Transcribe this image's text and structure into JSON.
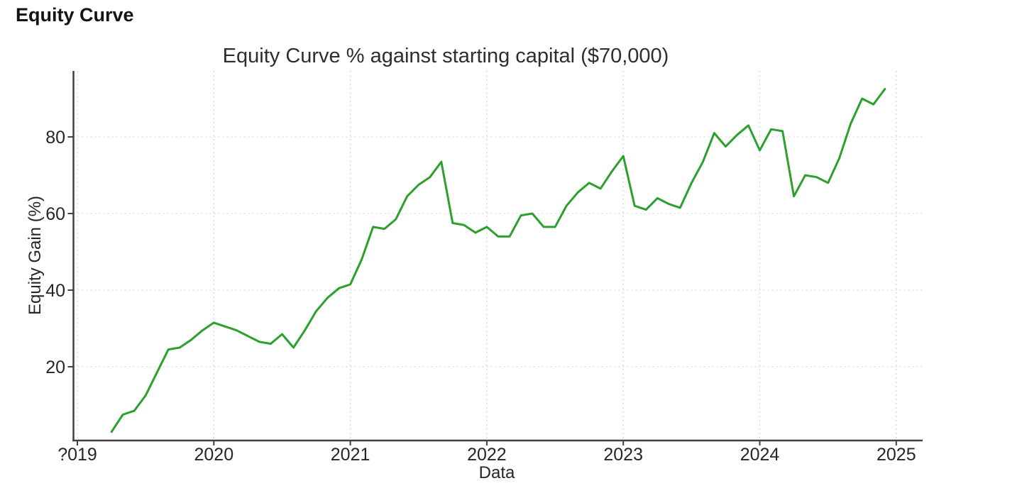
{
  "page": {
    "heading": "Equity Curve"
  },
  "chart_data": {
    "type": "line",
    "title": "Equity Curve % against starting capital ($70,000)",
    "xlabel": "Data",
    "ylabel": "Equity Gain (%)",
    "grid": true,
    "legend": "none",
    "line_color": "#2ca02c",
    "xlim": [
      2018.97,
      2025.2
    ],
    "ylim": [
      0,
      97
    ],
    "x_ticks": [
      2019,
      2020,
      2021,
      2022,
      2023,
      2024,
      2025
    ],
    "x_tick_labels": [
      "?019",
      "2020",
      "2021",
      "2022",
      "2023",
      "2024",
      "2025"
    ],
    "y_ticks": [
      20,
      40,
      60,
      80
    ],
    "y_tick_labels": [
      "20",
      "40",
      "60",
      "80"
    ],
    "series": [
      {
        "name": "Equity Curve %",
        "color": "#2ca02c",
        "x": [
          2019.25,
          2019.3333,
          2019.4167,
          2019.5,
          2019.5833,
          2019.6667,
          2019.75,
          2019.8333,
          2019.9167,
          2020.0,
          2020.0833,
          2020.1667,
          2020.25,
          2020.3333,
          2020.4167,
          2020.5,
          2020.5833,
          2020.6667,
          2020.75,
          2020.8333,
          2020.9167,
          2021.0,
          2021.0833,
          2021.1667,
          2021.25,
          2021.3333,
          2021.4167,
          2021.5,
          2021.5833,
          2021.6667,
          2021.75,
          2021.8333,
          2021.9167,
          2022.0,
          2022.0833,
          2022.1667,
          2022.25,
          2022.3333,
          2022.4167,
          2022.5,
          2022.5833,
          2022.6667,
          2022.75,
          2022.8333,
          2022.9167,
          2023.0,
          2023.0833,
          2023.1667,
          2023.25,
          2023.3333,
          2023.4167,
          2023.5,
          2023.5833,
          2023.6667,
          2023.75,
          2023.8333,
          2023.9167,
          2024.0,
          2024.0833,
          2024.1667,
          2024.25,
          2024.3333,
          2024.4167,
          2024.5,
          2024.5833,
          2024.6667,
          2024.75,
          2024.8333,
          2024.9167
        ],
        "values": [
          3,
          7.5,
          8.5,
          12.5,
          18.5,
          24.5,
          25,
          27,
          29.5,
          31.5,
          30.5,
          29.5,
          28,
          26.5,
          26,
          28.5,
          25,
          29.5,
          34.5,
          38,
          40.5,
          41.5,
          48,
          56.5,
          56,
          58.5,
          64.5,
          67.5,
          69.5,
          73.5,
          57.5,
          57,
          55,
          56.5,
          54,
          54,
          59.5,
          60,
          56.5,
          56.5,
          62,
          65.5,
          68,
          66.5,
          71,
          75,
          62,
          61,
          64,
          62.5,
          61.5,
          68,
          73.5,
          81,
          77.5,
          80.5,
          83,
          76.5,
          82,
          81.5,
          64.5,
          70,
          69.5,
          68,
          74.5,
          83.5,
          90,
          88.5,
          92.5
        ]
      }
    ]
  }
}
